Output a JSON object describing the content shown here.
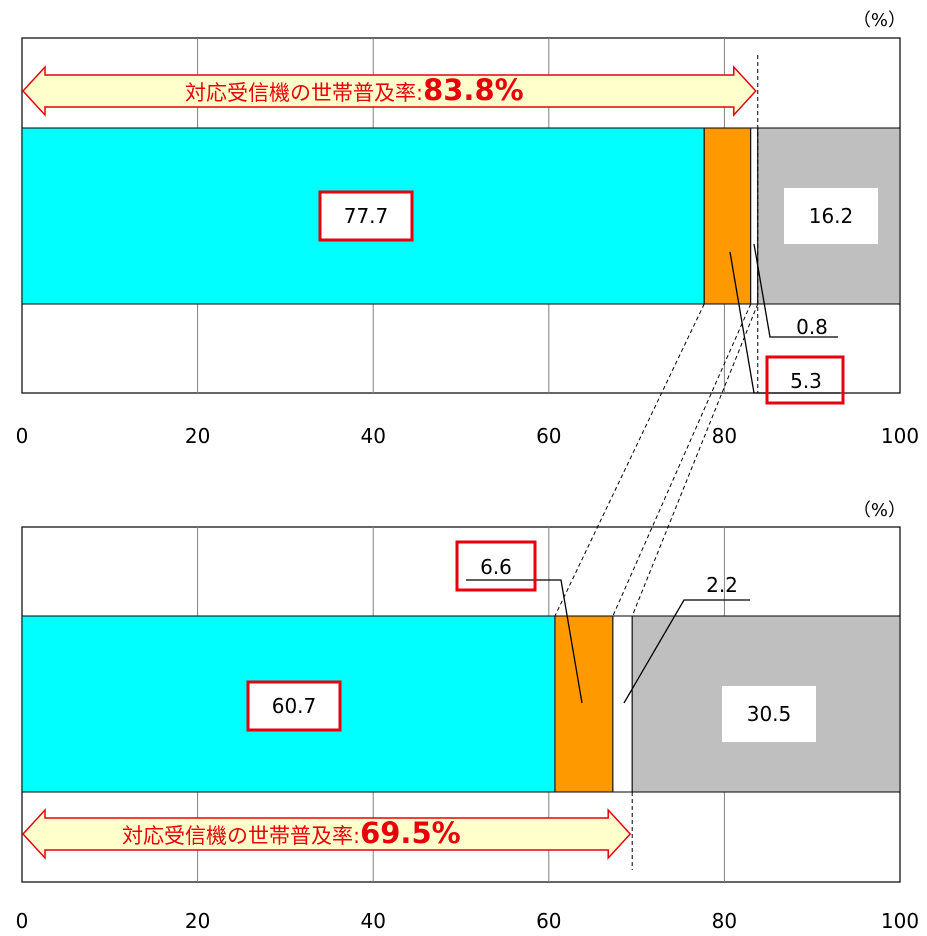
{
  "colors": {
    "cyan": "#00ffff",
    "orange": "#ff9900",
    "white": "#ffffff",
    "gray": "#bfbfbf",
    "highlight_red": "#e8000b",
    "arrow_fill": "#ffffcc"
  },
  "chart_data": [
    {
      "type": "bar",
      "orientation": "horizontal",
      "stacked": true,
      "unit_label": "（%）",
      "xlim": [
        0,
        100
      ],
      "x_ticks": [
        "0",
        "20",
        "40",
        "60",
        "80",
        "100"
      ],
      "grid": true,
      "segments": [
        {
          "value": 77.7,
          "label": "77.7",
          "color": "#00ffff",
          "highlighted": true
        },
        {
          "value": 5.3,
          "label": "5.3",
          "color": "#ff9900",
          "highlighted": true
        },
        {
          "value": 0.8,
          "label": "0.8",
          "color": "#ffffff",
          "highlighted": false
        },
        {
          "value": 16.2,
          "label": "16.2",
          "color": "#bfbfbf",
          "highlighted": false
        }
      ],
      "penetration_label": "対応受信機の世帯普及率:",
      "penetration_value": "83.8%",
      "penetration_rate": 83.8
    },
    {
      "type": "bar",
      "orientation": "horizontal",
      "stacked": true,
      "unit_label": "（%）",
      "xlim": [
        0,
        100
      ],
      "x_ticks": [
        "0",
        "20",
        "40",
        "60",
        "80",
        "100"
      ],
      "grid": true,
      "segments": [
        {
          "value": 60.7,
          "label": "60.7",
          "color": "#00ffff",
          "highlighted": true
        },
        {
          "value": 6.6,
          "label": "6.6",
          "color": "#ff9900",
          "highlighted": true
        },
        {
          "value": 2.2,
          "label": "2.2",
          "color": "#ffffff",
          "highlighted": false
        },
        {
          "value": 30.5,
          "label": "30.5",
          "color": "#bfbfbf",
          "highlighted": false
        }
      ],
      "penetration_label": "対応受信機の世帯普及率:",
      "penetration_value": "69.5%",
      "penetration_rate": 69.5
    }
  ]
}
